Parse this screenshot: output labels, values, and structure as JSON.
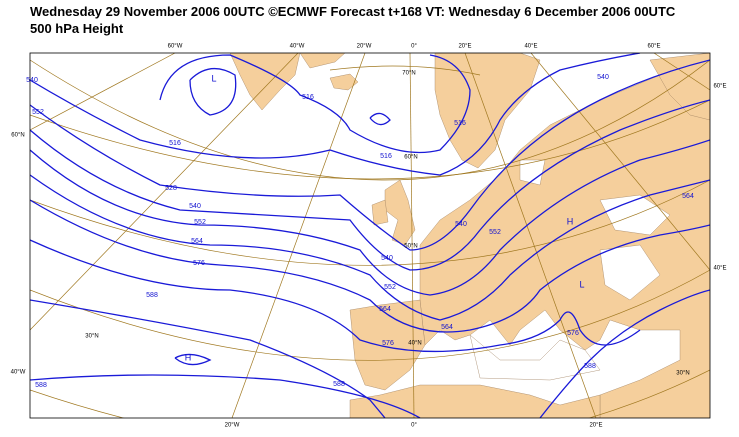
{
  "header": {
    "title": "Wednesday 29 November 2006 00UTC ©ECMWF Forecast t+168 VT: Wednesday 6 December 2006 00UTC",
    "subtitle": "500 hPa Height"
  },
  "graticule_labels": [
    "60°W",
    "40°W",
    "20°W",
    "0°",
    "20°E",
    "40°E",
    "60°E",
    "60°E",
    "60°N",
    "40°W",
    "40°E",
    "20°W",
    "0°",
    "20°E",
    "70°N",
    "60°N",
    "50°N",
    "40°N",
    "30°N",
    "30°N"
  ],
  "contour_labels": [
    516,
    516,
    516,
    528,
    540,
    552,
    564,
    576,
    588,
    588,
    540,
    552,
    564,
    576,
    588,
    564,
    552,
    540,
    516,
    540,
    564,
    576,
    588,
    540,
    552
  ],
  "pressure_centers": [
    "L",
    "H",
    "L",
    "H"
  ]
}
